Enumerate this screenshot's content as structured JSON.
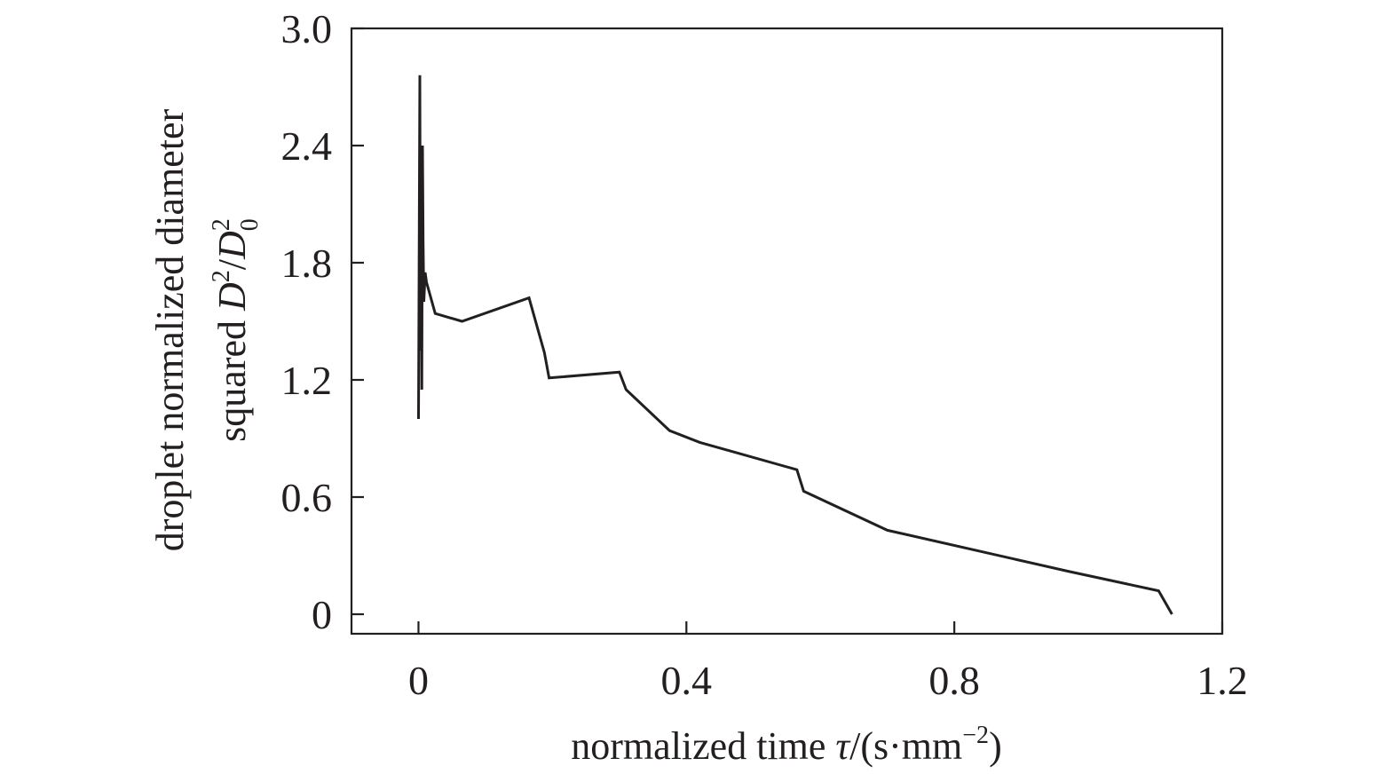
{
  "chart_data": {
    "type": "line",
    "title": "",
    "xlabel": {
      "text": "normalized time ",
      "symbol": "τ",
      "unit_open": "/(s·mm",
      "unit_exp": "−2",
      "unit_close": ")"
    },
    "ylabel": {
      "line1": "droplet normalized diameter",
      "line2_text": "squared ",
      "sym_num": "D",
      "num_exp": "2",
      "slash": "/",
      "sym_den": "D",
      "den_exp": "2",
      "den_sub": "0"
    },
    "xlim": [
      -0.1,
      1.2
    ],
    "ylim": [
      -0.1,
      3.0
    ],
    "xticks": [
      0,
      0.4,
      0.8,
      1.2
    ],
    "xtick_labels": [
      "0",
      "0.4",
      "0.8",
      "1.2"
    ],
    "yticks": [
      0,
      0.6,
      1.2,
      1.8,
      2.4,
      3.0
    ],
    "ytick_labels": [
      "0",
      "0.6",
      "1.2",
      "1.8",
      "2.4",
      "3.0"
    ],
    "grid": false,
    "legend": "none",
    "series": [
      {
        "color": "#231f20",
        "x": [
          0.0,
          0.002,
          0.003,
          0.004,
          0.005,
          0.006,
          0.007,
          0.008,
          0.01,
          0.012,
          0.025,
          0.065,
          0.165,
          0.188,
          0.195,
          0.3,
          0.31,
          0.375,
          0.42,
          0.565,
          0.575,
          0.7,
          0.97,
          1.105,
          1.125
        ],
        "y": [
          1.0,
          2.76,
          1.35,
          2.15,
          1.15,
          2.4,
          1.9,
          1.6,
          1.75,
          1.7,
          1.54,
          1.5,
          1.62,
          1.34,
          1.21,
          1.24,
          1.15,
          0.94,
          0.88,
          0.74,
          0.63,
          0.43,
          0.22,
          0.12,
          0.0
        ]
      }
    ]
  }
}
